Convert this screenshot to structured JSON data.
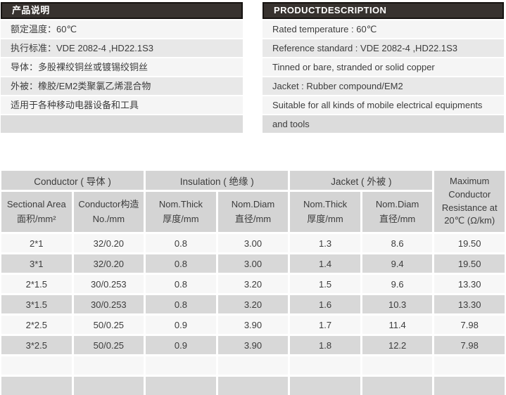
{
  "left_panel": {
    "title": "产品说明",
    "rows": [
      "额定温度：60℃",
      "执行标准：VDE 2082-4 ,HD22.1S3",
      "导体：多股裸绞铜丝或镀锡绞铜丝",
      "外被：橡胶/EM2类聚氯乙烯混合物",
      "适用于各种移动电器设备和工具",
      ""
    ]
  },
  "right_panel": {
    "title": "PRODUCTDESCRIPTION",
    "rows": [
      "Rated temperature : 60℃",
      "Reference standard : VDE 2082-4 ,HD22.1S3",
      "Tinned or bare, stranded or solid copper",
      "Jacket : Rubber compound/EM2",
      "Suitable for all kinds of mobile electrical equipments",
      "and tools"
    ]
  },
  "table": {
    "groups": [
      "Conductor ( 导体 )",
      "Insulation ( 绝缘 )",
      "Jacket ( 外被 )"
    ],
    "max_resistance_header": "Maximum Conductor Resistance at 20℃ (Ω/km)",
    "sub_columns": [
      {
        "en": "Sectional Area",
        "cn": "面积/mm²"
      },
      {
        "en": "Conductor构造",
        "cn": "No./mm"
      },
      {
        "en": "Nom.Thick",
        "cn": "厚度/mm"
      },
      {
        "en": "Nom.Diam",
        "cn": "直径/mm"
      },
      {
        "en": "Nom.Thick",
        "cn": "厚度/mm"
      },
      {
        "en": "Nom.Diam",
        "cn": "直径/mm"
      }
    ],
    "rows": [
      [
        "2*1",
        "32/0.20",
        "0.8",
        "3.00",
        "1.3",
        "8.6",
        "19.50"
      ],
      [
        "3*1",
        "32/0.20",
        "0.8",
        "3.00",
        "1.4",
        "9.4",
        "19.50"
      ],
      [
        "2*1.5",
        "30/0.253",
        "0.8",
        "3.20",
        "1.5",
        "9.6",
        "13.30"
      ],
      [
        "3*1.5",
        "30/0.253",
        "0.8",
        "3.20",
        "1.6",
        "10.3",
        "13.30"
      ],
      [
        "2*2.5",
        "50/0.25",
        "0.9",
        "3.90",
        "1.7",
        "11.4",
        "7.98"
      ],
      [
        "3*2.5",
        "50/0.25",
        "0.9",
        "3.90",
        "1.8",
        "12.2",
        "7.98"
      ]
    ],
    "empty_row_count": 2
  },
  "colors": {
    "header_bar": "#37322f",
    "header_bar_border": "#161311",
    "panel_row_light": "#f5f5f5",
    "panel_row_mid": "#e8e8e8",
    "panel_row_dark": "#dcdcdc",
    "table_header_gray": "#d4d4d4",
    "table_row_light": "#f7f7f7",
    "table_row_gray": "#d8d8d8",
    "text": "#3c3c3c"
  }
}
